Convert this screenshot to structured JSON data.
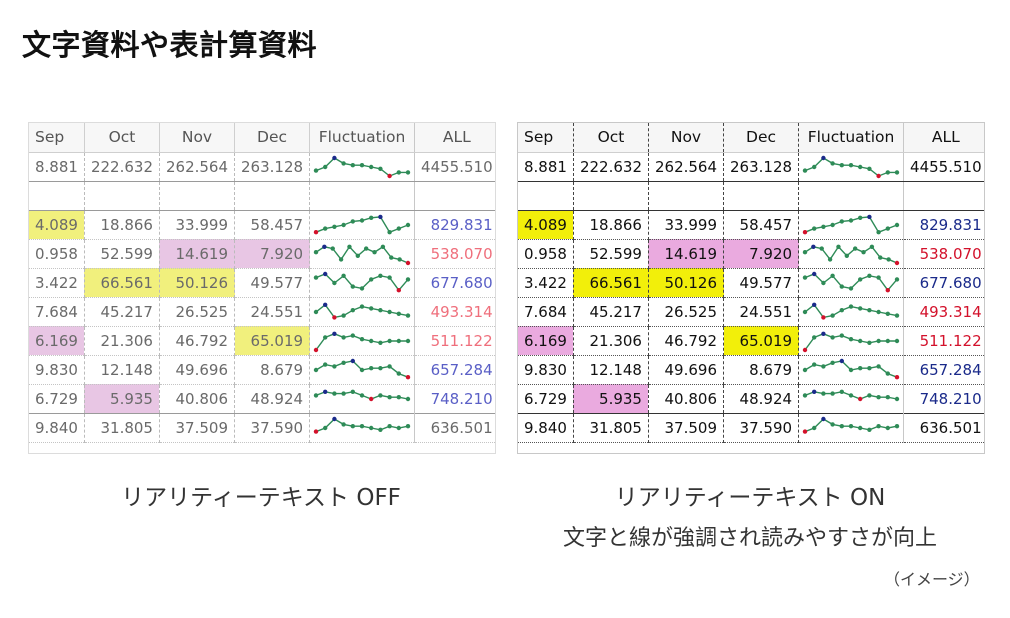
{
  "title": "文字資料や表計算資料",
  "columns": [
    "Sep",
    "Oct",
    "Nov",
    "Dec",
    "Fluctuation",
    "ALL"
  ],
  "summary_row": {
    "sep": "8.881",
    "oct": "222.632",
    "nov": "262.564",
    "dec": "263.128",
    "all": "4455.510"
  },
  "rows": [
    {
      "sep": "4.089",
      "oct": "18.866",
      "nov": "33.999",
      "dec": "58.457",
      "all": "829.831",
      "all_color": "blue"
    },
    {
      "sep": "0.958",
      "oct": "52.599",
      "nov": "14.619",
      "dec": "7.920",
      "all": "538.070",
      "all_color": "red"
    },
    {
      "sep": "3.422",
      "oct": "66.561",
      "nov": "50.126",
      "dec": "49.577",
      "all": "677.680",
      "all_color": "blue"
    },
    {
      "sep": "7.684",
      "oct": "45.217",
      "nov": "26.525",
      "dec": "24.551",
      "all": "493.314",
      "all_color": "red"
    },
    {
      "sep": "6.169",
      "oct": "21.306",
      "nov": "46.792",
      "dec": "65.019",
      "all": "511.122",
      "all_color": "red"
    },
    {
      "sep": "9.830",
      "oct": "12.148",
      "nov": "49.696",
      "dec": "8.679",
      "all": "657.284",
      "all_color": "blue"
    },
    {
      "sep": "6.729",
      "oct": "5.935",
      "nov": "40.806",
      "dec": "48.924",
      "all": "748.210",
      "all_color": "blue"
    }
  ],
  "last_row": {
    "sep": "9.840",
    "oct": "31.805",
    "nov": "37.509",
    "dec": "37.590",
    "all": "636.501"
  },
  "colors": {
    "highlight_yellow": "#f2ef0a",
    "highlight_pink": "#eaaadf",
    "sparkline": "#2e8b57",
    "spark_high": "#1a2a8a",
    "spark_low": "#d3112b"
  },
  "captions": {
    "off": "リアリティーテキスト OFF",
    "on": "リアリティーテキスト ON",
    "on_sub": "文字と線が強調され読みやすさが向上",
    "note": "（イメージ）"
  }
}
